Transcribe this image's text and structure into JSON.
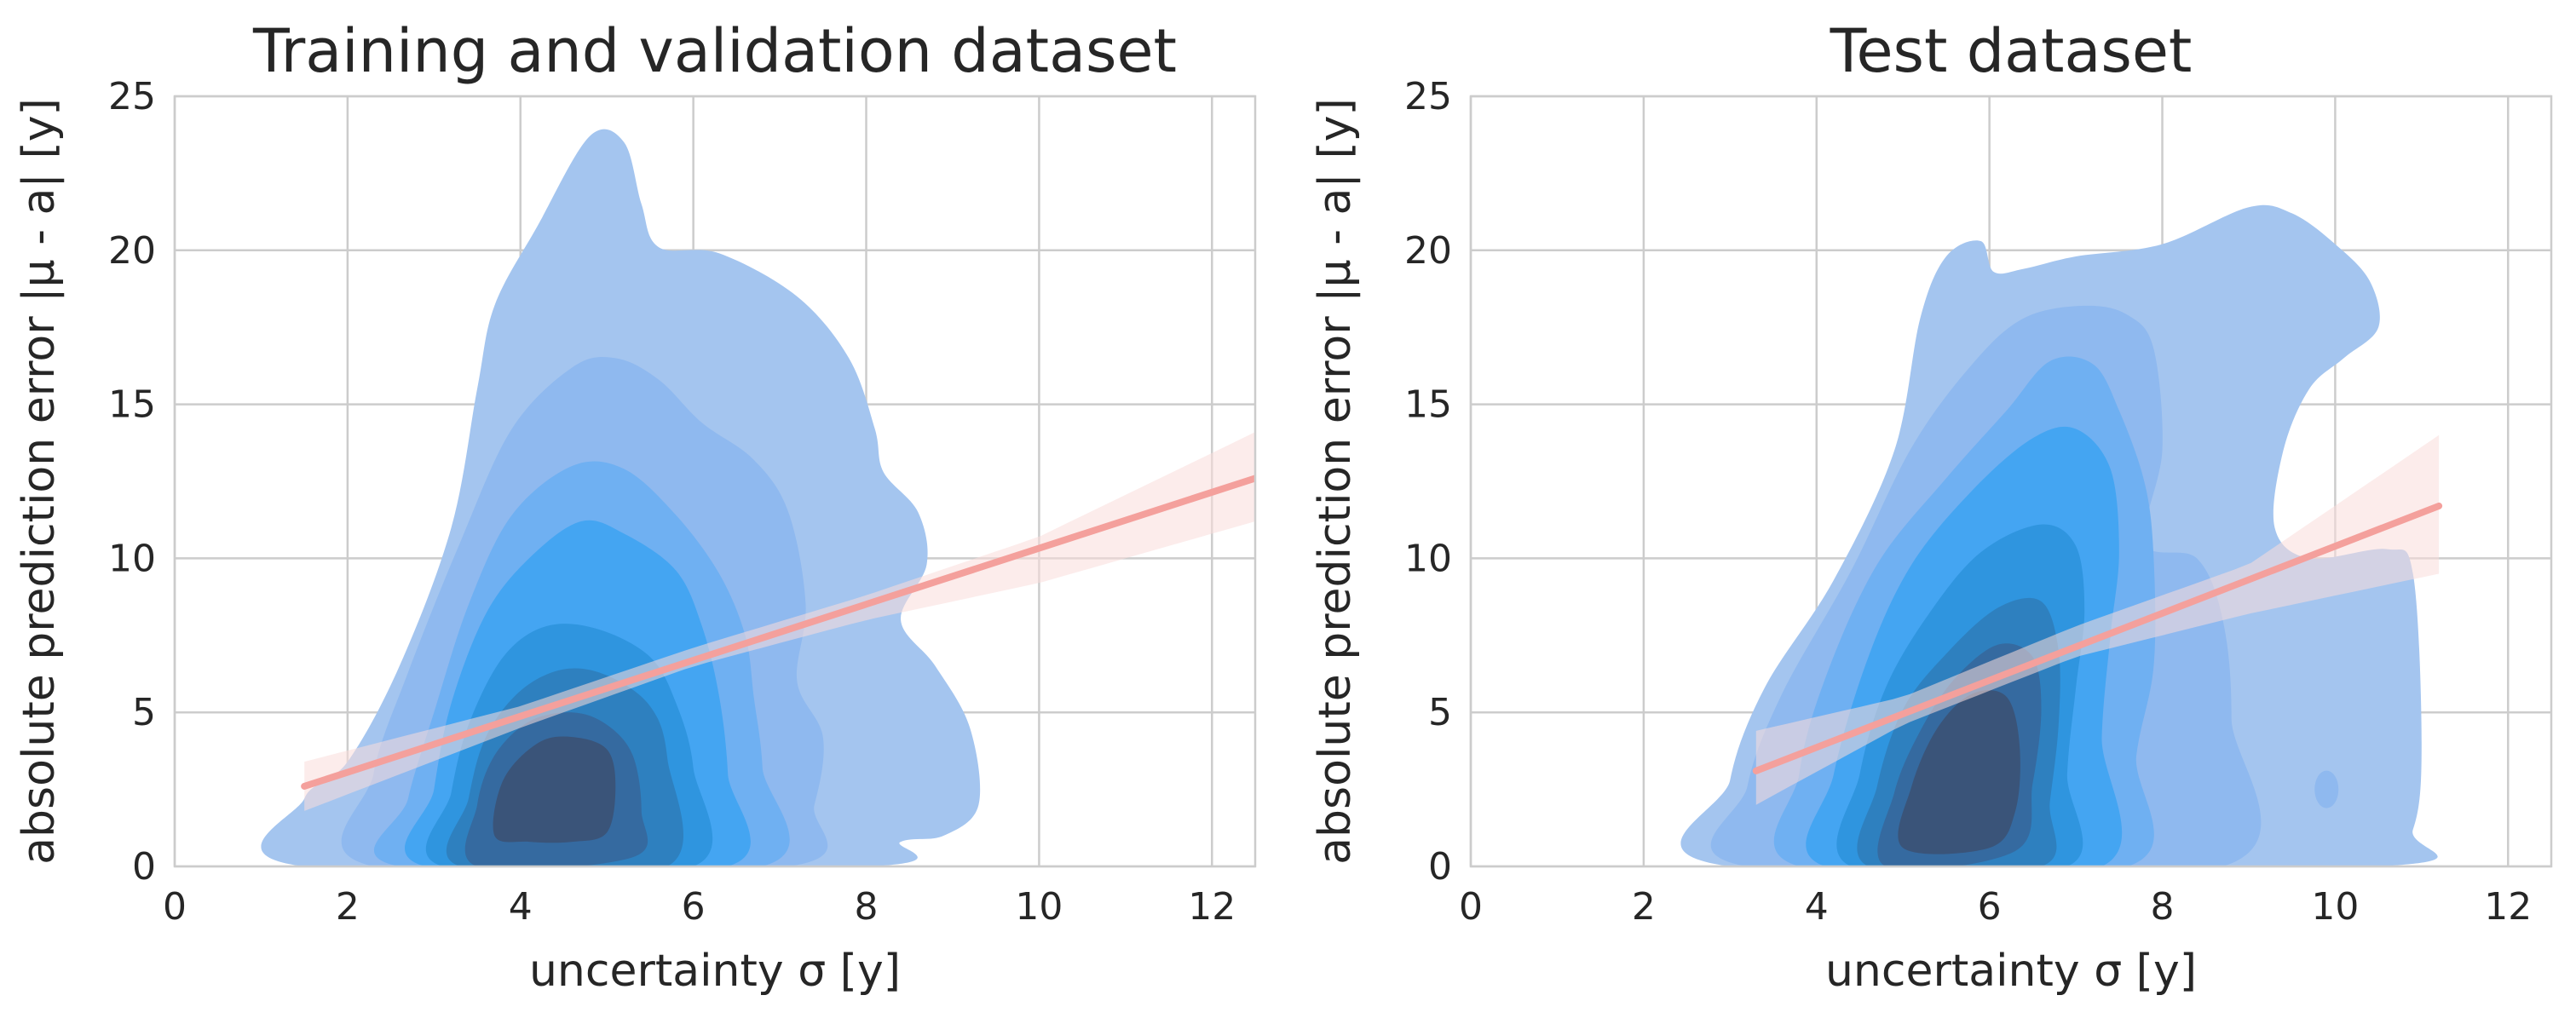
{
  "chart_data": [
    {
      "type": "kde_contour_with_regression",
      "title": "Training and validation dataset",
      "xlabel": "uncertainty σ [y]",
      "ylabel": "absolute prediction error |μ - a| [y]",
      "xlim": [
        0,
        12.5
      ],
      "ylim": [
        0,
        25
      ],
      "xticks": [
        0,
        2,
        4,
        6,
        8,
        10,
        12
      ],
      "yticks": [
        0,
        5,
        10,
        15,
        20,
        25
      ],
      "grid": true,
      "density_peak": {
        "x": 4.5,
        "y": 2.8
      },
      "density_levels": [
        [
          [
            1.5,
            0
          ],
          [
            1.5,
            2.2
          ],
          [
            2.0,
            3.4
          ],
          [
            2.6,
            6.5
          ],
          [
            3.2,
            11
          ],
          [
            3.5,
            15.5
          ],
          [
            3.7,
            18.2
          ],
          [
            4.2,
            20.8
          ],
          [
            4.8,
            23.7
          ],
          [
            5.2,
            23.5
          ],
          [
            5.4,
            21.5
          ],
          [
            5.6,
            20.1
          ],
          [
            6.3,
            19.9
          ],
          [
            7.2,
            18.5
          ],
          [
            7.8,
            16.5
          ],
          [
            8.1,
            14.2
          ],
          [
            8.2,
            12.8
          ],
          [
            8.6,
            11.5
          ],
          [
            8.7,
            9.8
          ],
          [
            8.4,
            8.0
          ],
          [
            8.8,
            6.5
          ],
          [
            9.2,
            4.5
          ],
          [
            9.3,
            2.0
          ],
          [
            8.9,
            1.0
          ],
          [
            8.4,
            0.8
          ],
          [
            8.0,
            0
          ]
        ],
        [
          [
            2.3,
            0
          ],
          [
            2.3,
            3
          ],
          [
            2.7,
            6.3
          ],
          [
            3.3,
            10.5
          ],
          [
            3.9,
            14.2
          ],
          [
            4.6,
            16.2
          ],
          [
            5.1,
            16.5
          ],
          [
            5.6,
            15.8
          ],
          [
            6.1,
            14.4
          ],
          [
            6.7,
            13.2
          ],
          [
            7.1,
            11.5
          ],
          [
            7.3,
            8.5
          ],
          [
            7.2,
            6.0
          ],
          [
            7.5,
            4.2
          ],
          [
            7.4,
            2.0
          ],
          [
            7.1,
            0
          ]
        ],
        [
          [
            2.6,
            0
          ],
          [
            2.7,
            2.2
          ],
          [
            3.0,
            5.0
          ],
          [
            3.4,
            8.5
          ],
          [
            3.9,
            11.4
          ],
          [
            4.6,
            13.0
          ],
          [
            5.2,
            12.9
          ],
          [
            5.8,
            11.4
          ],
          [
            6.3,
            9.5
          ],
          [
            6.6,
            7.5
          ],
          [
            6.7,
            5.5
          ],
          [
            6.8,
            3.2
          ],
          [
            6.8,
            0
          ]
        ],
        [
          [
            2.9,
            0
          ],
          [
            3.0,
            2.5
          ],
          [
            3.2,
            5.3
          ],
          [
            3.6,
            8.2
          ],
          [
            4.1,
            10.0
          ],
          [
            4.7,
            11.2
          ],
          [
            5.2,
            10.8
          ],
          [
            5.8,
            9.6
          ],
          [
            6.1,
            7.8
          ],
          [
            6.3,
            5.5
          ],
          [
            6.4,
            3.0
          ],
          [
            6.4,
            0
          ]
        ],
        [
          [
            3.1,
            0
          ],
          [
            3.2,
            2.4
          ],
          [
            3.4,
            4.6
          ],
          [
            3.8,
            6.8
          ],
          [
            4.3,
            7.8
          ],
          [
            4.9,
            7.7
          ],
          [
            5.5,
            6.8
          ],
          [
            5.8,
            5.3
          ],
          [
            6.0,
            3.2
          ],
          [
            6.0,
            0
          ]
        ],
        [
          [
            3.3,
            0
          ],
          [
            3.4,
            2.2
          ],
          [
            3.6,
            4.2
          ],
          [
            4.0,
            5.7
          ],
          [
            4.5,
            6.4
          ],
          [
            5.0,
            6.2
          ],
          [
            5.5,
            5.2
          ],
          [
            5.7,
            3.5
          ],
          [
            5.7,
            0
          ]
        ],
        [
          [
            3.5,
            0
          ],
          [
            3.5,
            2.0
          ],
          [
            3.7,
            3.6
          ],
          [
            4.1,
            4.7
          ],
          [
            4.6,
            5.0
          ],
          [
            5.0,
            4.6
          ],
          [
            5.3,
            3.6
          ],
          [
            5.4,
            1.8
          ],
          [
            5.3,
            0.3
          ]
        ],
        [
          [
            3.7,
            1.0
          ],
          [
            3.8,
            2.8
          ],
          [
            4.2,
            4.0
          ],
          [
            4.6,
            4.2
          ],
          [
            5.0,
            3.8
          ],
          [
            5.1,
            2.6
          ],
          [
            5.0,
            1.1
          ],
          [
            4.6,
            0.8
          ],
          [
            4.1,
            0.8
          ]
        ]
      ],
      "regression": {
        "x_range": [
          1.5,
          12.5
        ],
        "y_at_start": 2.6,
        "y_at_end": 12.6,
        "ci_band": {
          "x": [
            1.5,
            4,
            6,
            8,
            10,
            12.5
          ],
          "lower": [
            1.8,
            4.5,
            6.5,
            8.0,
            9.2,
            11.2
          ],
          "upper": [
            3.4,
            5.2,
            7.1,
            8.8,
            10.7,
            14.1
          ]
        }
      }
    },
    {
      "type": "kde_contour_with_regression",
      "title": "Test dataset",
      "xlabel": "uncertainty σ [y]",
      "ylabel": "absolute prediction error |μ - a| [y]",
      "xlim": [
        0,
        12.5
      ],
      "ylim": [
        0,
        25
      ],
      "xticks": [
        0,
        2,
        4,
        6,
        8,
        10,
        12
      ],
      "yticks": [
        0,
        5,
        10,
        15,
        20,
        25
      ],
      "grid": true,
      "density_peak": {
        "x": 5.7,
        "y": 3.5
      },
      "density_levels": [
        [
          [
            3.0,
            0
          ],
          [
            3.0,
            2.8
          ],
          [
            3.4,
            5.8
          ],
          [
            4.2,
            9.3
          ],
          [
            4.9,
            13.5
          ],
          [
            5.2,
            17.8
          ],
          [
            5.5,
            19.8
          ],
          [
            5.9,
            20.3
          ],
          [
            6.05,
            19.3
          ],
          [
            6.4,
            19.4
          ],
          [
            7.0,
            19.8
          ],
          [
            8.0,
            20.2
          ],
          [
            9.0,
            21.4
          ],
          [
            9.5,
            21.2
          ],
          [
            10.0,
            20.2
          ],
          [
            10.4,
            19.0
          ],
          [
            10.5,
            17.5
          ],
          [
            10.1,
            16.5
          ],
          [
            9.7,
            15.5
          ],
          [
            9.4,
            13.5
          ],
          [
            9.3,
            11.0
          ],
          [
            9.7,
            10.0
          ],
          [
            10.6,
            10.3
          ],
          [
            10.9,
            9.5
          ],
          [
            11.0,
            4.0
          ],
          [
            10.9,
            1.2
          ],
          [
            10.5,
            0
          ]
        ],
        [
          [
            3.2,
            0
          ],
          [
            3.2,
            2.6
          ],
          [
            3.6,
            5.6
          ],
          [
            4.4,
            9.6
          ],
          [
            5.1,
            13.6
          ],
          [
            5.8,
            16.3
          ],
          [
            6.4,
            17.8
          ],
          [
            7.1,
            18.2
          ],
          [
            7.6,
            17.9
          ],
          [
            7.9,
            16.8
          ],
          [
            8.0,
            13.5
          ],
          [
            7.8,
            10.5
          ],
          [
            8.4,
            10.0
          ],
          [
            8.7,
            8.0
          ],
          [
            8.8,
            4.8
          ],
          [
            8.7,
            0
          ]
        ],
        [
          [
            3.8,
            0
          ],
          [
            3.8,
            3.0
          ],
          [
            4.1,
            6.1
          ],
          [
            4.7,
            9.8
          ],
          [
            5.5,
            12.6
          ],
          [
            6.2,
            14.8
          ],
          [
            6.7,
            16.4
          ],
          [
            7.2,
            16.3
          ],
          [
            7.5,
            14.8
          ],
          [
            7.8,
            12.4
          ],
          [
            7.9,
            10.0
          ],
          [
            7.9,
            6.5
          ],
          [
            7.7,
            3.6
          ],
          [
            7.6,
            0
          ]
        ],
        [
          [
            4.1,
            0
          ],
          [
            4.2,
            3.0
          ],
          [
            4.6,
            6.8
          ],
          [
            5.1,
            9.8
          ],
          [
            5.8,
            12.2
          ],
          [
            6.5,
            13.9
          ],
          [
            7.0,
            14.2
          ],
          [
            7.4,
            12.9
          ],
          [
            7.5,
            10.2
          ],
          [
            7.4,
            7.5
          ],
          [
            7.3,
            4.2
          ],
          [
            7.3,
            0
          ]
        ],
        [
          [
            4.4,
            0
          ],
          [
            4.5,
            3.0
          ],
          [
            4.8,
            5.8
          ],
          [
            5.3,
            8.2
          ],
          [
            5.9,
            10.2
          ],
          [
            6.6,
            11.1
          ],
          [
            7.0,
            10.4
          ],
          [
            7.1,
            8.3
          ],
          [
            7.0,
            5.8
          ],
          [
            6.9,
            3.0
          ],
          [
            6.9,
            0
          ]
        ],
        [
          [
            4.6,
            0
          ],
          [
            4.7,
            2.6
          ],
          [
            5.0,
            5.1
          ],
          [
            5.5,
            6.9
          ],
          [
            6.1,
            8.4
          ],
          [
            6.6,
            8.6
          ],
          [
            6.8,
            7.0
          ],
          [
            6.8,
            4.6
          ],
          [
            6.7,
            2.1
          ],
          [
            6.6,
            0
          ]
        ],
        [
          [
            4.8,
            0
          ],
          [
            4.9,
            2.4
          ],
          [
            5.2,
            4.4
          ],
          [
            5.6,
            6.1
          ],
          [
            6.1,
            7.2
          ],
          [
            6.5,
            6.8
          ],
          [
            6.6,
            5.1
          ],
          [
            6.5,
            2.7
          ],
          [
            6.3,
            0.5
          ]
        ],
        [
          [
            5.0,
            0.6
          ],
          [
            5.1,
            2.6
          ],
          [
            5.4,
            4.5
          ],
          [
            5.8,
            5.6
          ],
          [
            6.2,
            5.5
          ],
          [
            6.35,
            3.9
          ],
          [
            6.3,
            1.8
          ],
          [
            6.0,
            0.6
          ]
        ]
      ],
      "isolated_blob": {
        "x": 9.9,
        "y": 2.5
      },
      "regression": {
        "x_range": [
          3.3,
          11.2
        ],
        "y_at_start": 3.1,
        "y_at_end": 11.7,
        "ci_band": {
          "x": [
            3.3,
            5,
            7,
            9,
            11.2
          ],
          "lower": [
            2.0,
            4.6,
            6.8,
            8.2,
            9.5
          ],
          "upper": [
            4.4,
            5.5,
            7.8,
            9.8,
            14.0
          ]
        }
      }
    }
  ],
  "colors": {
    "background": "#ffffff",
    "grid": "#cccccc",
    "axis_frame": "#cccccc",
    "text": "#262626",
    "regression_line": "#f4a09c",
    "regression_band": "#fadcdb",
    "density_levels": [
      "#a4c5ef",
      "#8fb9ef",
      "#6fb0f2",
      "#44a5f2",
      "#2f95df",
      "#2e80bf",
      "#356aa0",
      "#3a5479"
    ]
  }
}
